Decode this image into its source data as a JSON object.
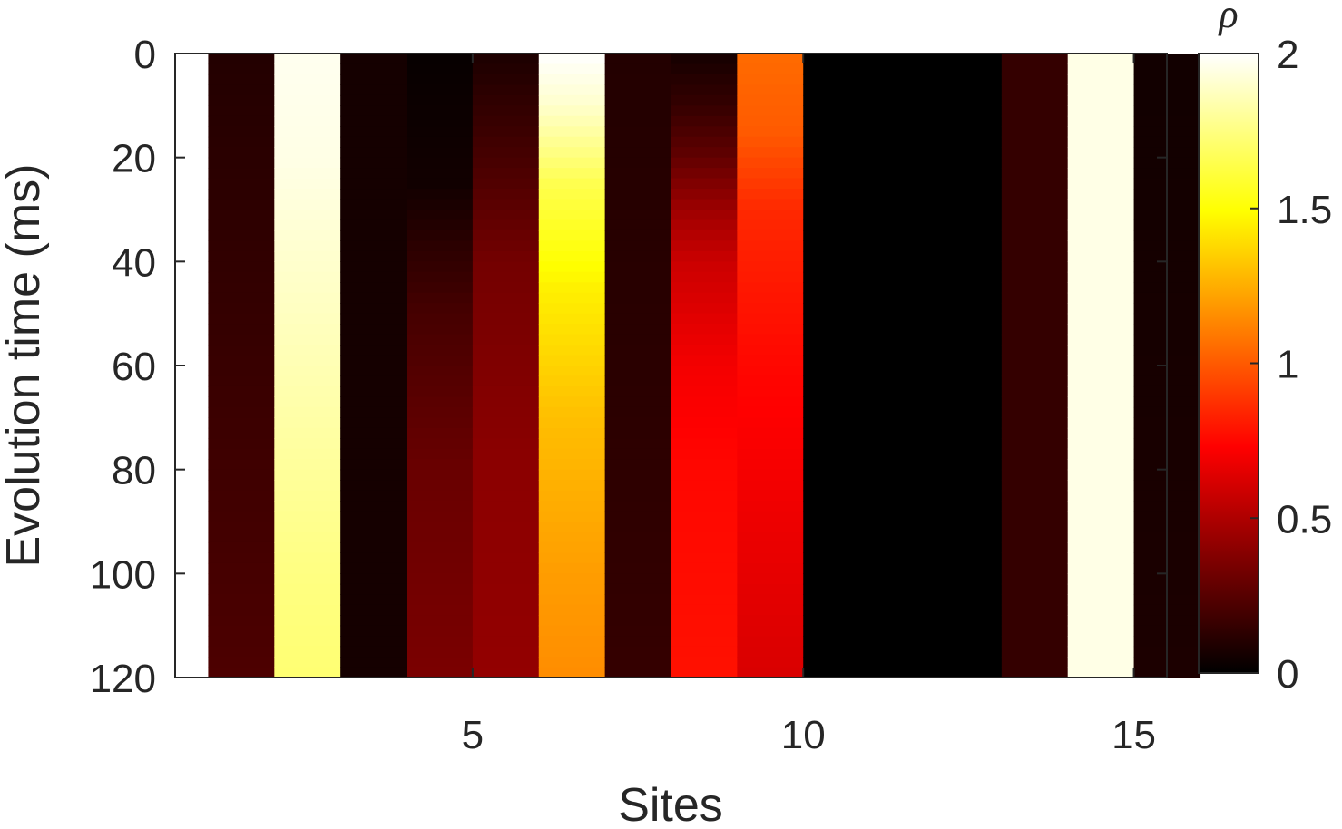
{
  "chart_data": {
    "type": "heatmap",
    "title": "",
    "xlabel": "Sites",
    "ylabel": "Evolution time (ms)",
    "x": [
      1,
      2,
      3,
      4,
      5,
      6,
      7,
      8,
      9,
      10,
      11,
      12,
      13,
      14,
      15
    ],
    "y_range": [
      0,
      120
    ],
    "y_reversed": true,
    "xticks": [
      5,
      10,
      15
    ],
    "yticks": [
      0,
      20,
      40,
      60,
      80,
      100,
      120
    ],
    "colormap": "hot",
    "colorbar": {
      "label": "ρ",
      "range": [
        0,
        2
      ],
      "ticks": [
        "0",
        "0.5",
        "1",
        "1.5",
        "2"
      ]
    },
    "site_profiles": [
      {
        "site": 1,
        "times": [
          0,
          120
        ],
        "values": [
          0.1,
          0.22
        ]
      },
      {
        "site": 2,
        "times": [
          0,
          20,
          40,
          60,
          80,
          100,
          120
        ],
        "values": [
          1.97,
          1.95,
          1.9,
          1.85,
          1.8,
          1.75,
          1.72
        ]
      },
      {
        "site": 3,
        "times": [
          0,
          120
        ],
        "values": [
          0.06,
          0.06
        ]
      },
      {
        "site": 4,
        "times": [
          0,
          25,
          50,
          80,
          120
        ],
        "values": [
          0.02,
          0.05,
          0.2,
          0.3,
          0.35
        ]
      },
      {
        "site": 5,
        "times": [
          0,
          20,
          40,
          80,
          120
        ],
        "values": [
          0.08,
          0.2,
          0.33,
          0.4,
          0.42
        ]
      },
      {
        "site": 6,
        "times": [
          0,
          10,
          25,
          45,
          70,
          100,
          120
        ],
        "values": [
          2.0,
          1.9,
          1.65,
          1.45,
          1.3,
          1.2,
          1.15
        ]
      },
      {
        "site": 7,
        "times": [
          0,
          60,
          120
        ],
        "values": [
          0.1,
          0.12,
          0.15
        ]
      },
      {
        "site": 8,
        "times": [
          0,
          10,
          20,
          30,
          40,
          60,
          80,
          120
        ],
        "values": [
          0.06,
          0.15,
          0.28,
          0.45,
          0.58,
          0.7,
          0.75,
          0.78
        ]
      },
      {
        "site": 9,
        "times": [
          0,
          15,
          30,
          60,
          90,
          120
        ],
        "values": [
          1.05,
          1.0,
          0.85,
          0.75,
          0.68,
          0.62
        ]
      },
      {
        "site": 10,
        "times": [
          0,
          120
        ],
        "values": [
          0.0,
          0.0
        ]
      },
      {
        "site": 11,
        "times": [
          0,
          120
        ],
        "values": [
          0.0,
          0.0
        ]
      },
      {
        "site": 12,
        "times": [
          0,
          120
        ],
        "values": [
          0.0,
          0.0
        ]
      },
      {
        "site": 13,
        "times": [
          0,
          120
        ],
        "values": [
          0.15,
          0.15
        ]
      },
      {
        "site": 14,
        "times": [
          0,
          120
        ],
        "values": [
          1.95,
          1.95
        ]
      },
      {
        "site": 15,
        "times": [
          0,
          120
        ],
        "values": [
          0.05,
          0.08
        ]
      }
    ]
  }
}
